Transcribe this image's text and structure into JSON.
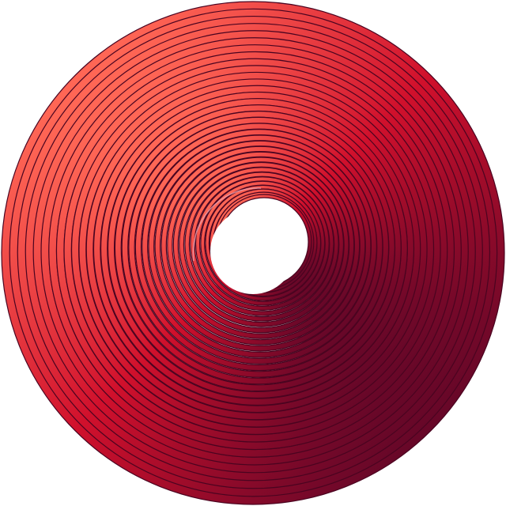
{
  "artwork": {
    "subject": "concentric-rings",
    "colors": {
      "light": "#ff6655",
      "mid": "#d0102c",
      "dark": "#5a0628",
      "outline": "#4a0420",
      "background": "#ffffff",
      "highlight": "#e8a0b0"
    }
  }
}
